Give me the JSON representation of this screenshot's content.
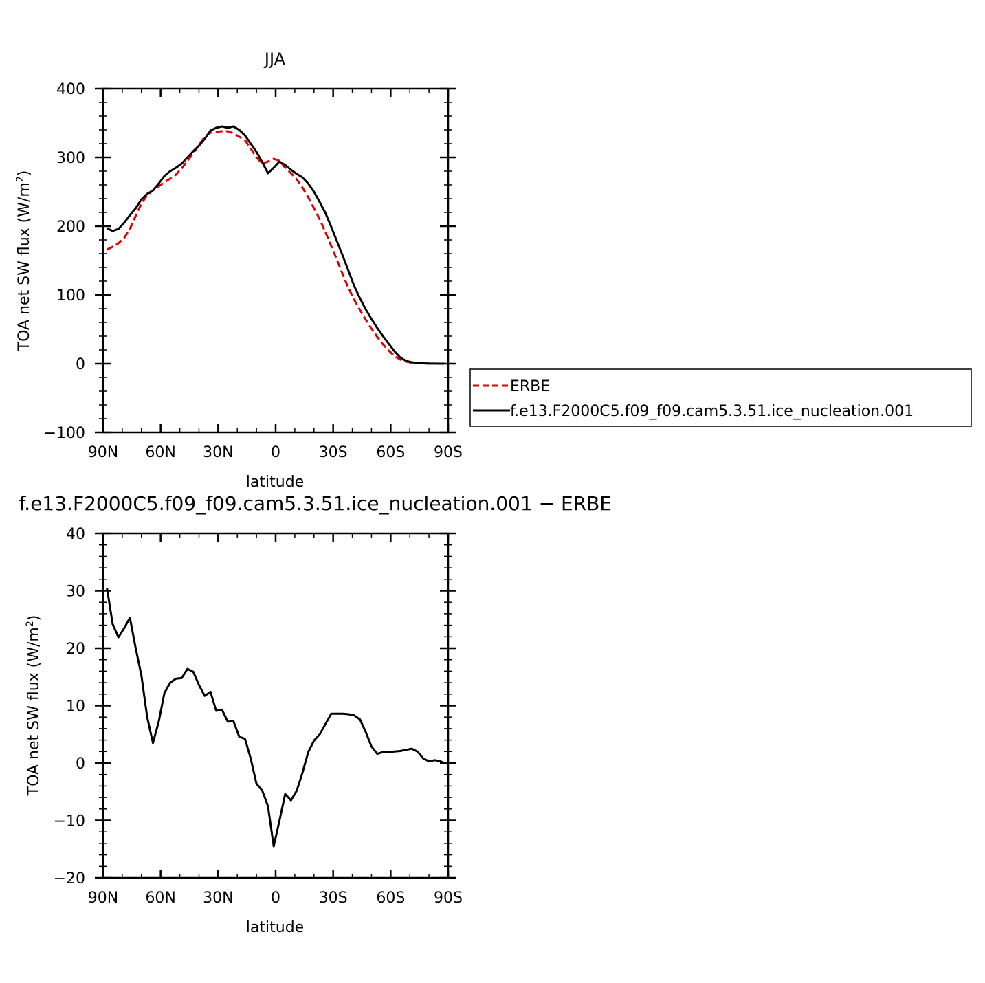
{
  "chart_data": [
    {
      "type": "line",
      "title": "JJA",
      "xlabel": "latitude",
      "ylabel": "TOA net SW flux (W/m²)",
      "ylabel_main": "TOA net SW flux (W/m",
      "ylabel_sup": "2",
      "ylabel_end": ")",
      "xlim": [
        90,
        -90
      ],
      "ylim": [
        -100,
        400
      ],
      "xticks": [
        90,
        60,
        30,
        0,
        -30,
        -60,
        -90
      ],
      "xtick_labels": [
        "90N",
        "60N",
        "30N",
        "0",
        "30S",
        "60S",
        "90S"
      ],
      "yticks": [
        -100,
        0,
        100,
        200,
        300,
        400
      ],
      "ytick_labels": [
        "−100",
        "0",
        "100",
        "200",
        "300",
        "400"
      ],
      "legend_position": "right",
      "series": [
        {
          "name": "ERBE",
          "color": "#e00000",
          "style": "dashed",
          "x": [
            88,
            85,
            82,
            79,
            76,
            73,
            70,
            67,
            64,
            61,
            58,
            55,
            52,
            49,
            46,
            43,
            40,
            37,
            34,
            31,
            28,
            25,
            22,
            19,
            16,
            13,
            10,
            7,
            4,
            1,
            -2,
            -5,
            -8,
            -11,
            -14,
            -17,
            -20,
            -23,
            -26,
            -29,
            -32,
            -35,
            -38,
            -41,
            -44,
            -47,
            -50,
            -53,
            -56,
            -59,
            -62,
            -65,
            -68,
            -71,
            -74,
            -77,
            -80,
            -83,
            -86,
            -88
          ],
          "y": [
            166,
            170,
            175,
            183,
            196,
            215,
            233,
            245,
            252,
            258,
            264,
            269,
            275,
            284,
            295,
            306,
            318,
            330,
            336,
            337,
            338,
            338,
            335,
            330,
            325,
            313,
            300,
            291,
            294,
            298,
            295,
            285,
            277,
            268,
            256,
            242,
            226,
            210,
            191,
            171,
            151,
            130,
            110,
            93,
            78,
            64,
            51,
            39,
            28,
            19,
            11,
            6,
            3,
            1.5,
            0.8,
            0.3,
            0.1,
            0,
            0,
            0
          ]
        },
        {
          "name": "f.e13.F2000C5.f09_f09.cam5.3.51.ice_nucleation.001",
          "color": "#000000",
          "style": "solid",
          "x": [
            88,
            85,
            82,
            79,
            76,
            73,
            70,
            67,
            64,
            61,
            58,
            55,
            52,
            49,
            46,
            43,
            40,
            37,
            34,
            31,
            28,
            25,
            22,
            19,
            16,
            13,
            10,
            7,
            4,
            1,
            -2,
            -5,
            -8,
            -11,
            -14,
            -17,
            -20,
            -23,
            -26,
            -29,
            -32,
            -35,
            -38,
            -41,
            -44,
            -47,
            -50,
            -53,
            -56,
            -59,
            -62,
            -65,
            -68,
            -71,
            -74,
            -77,
            -80,
            -83,
            -86,
            -88
          ],
          "y": [
            197,
            193,
            196,
            205,
            216,
            226,
            239,
            247,
            252,
            262,
            273,
            280,
            285,
            291,
            300,
            309,
            317,
            327,
            339,
            343,
            345,
            343,
            345,
            340,
            332,
            320,
            308,
            293,
            277,
            285,
            294,
            289,
            282,
            276,
            271,
            262,
            250,
            235,
            219,
            199,
            178,
            157,
            135,
            113,
            95,
            79,
            65,
            52,
            40,
            29,
            18,
            9,
            4,
            2,
            1,
            0.5,
            0.2,
            0.1,
            0,
            0
          ]
        }
      ]
    },
    {
      "type": "line",
      "title": "f.e13.F2000C5.f09_f09.cam5.3.51.ice_nucleation.001 − ERBE",
      "xlabel": "latitude",
      "ylabel": "TOA net SW flux (W/m²)",
      "ylabel_main": "TOA net SW flux (W/m",
      "ylabel_sup": "2",
      "ylabel_end": ")",
      "xlim": [
        90,
        -90
      ],
      "ylim": [
        -20,
        40
      ],
      "xticks": [
        90,
        60,
        30,
        0,
        -30,
        -60,
        -90
      ],
      "xtick_labels": [
        "90N",
        "60N",
        "30N",
        "0",
        "30S",
        "60S",
        "90S"
      ],
      "yticks": [
        -20,
        -10,
        0,
        10,
        20,
        30,
        40
      ],
      "ytick_labels": [
        "−20",
        "−10",
        "0",
        "10",
        "20",
        "30",
        "40"
      ],
      "series": [
        {
          "name": "",
          "color": "#000000",
          "style": "solid",
          "x": [
            88,
            85,
            82,
            79,
            76,
            73,
            70,
            67,
            64,
            61,
            58,
            55,
            52,
            49,
            46,
            43,
            40,
            37,
            34,
            31,
            28,
            25,
            22,
            19,
            16,
            13,
            10,
            7,
            4,
            1,
            -2,
            -5,
            -8,
            -11,
            -14,
            -17,
            -20,
            -23,
            -26,
            -29,
            -32,
            -35,
            -38,
            -41,
            -44,
            -47,
            -50,
            -53,
            -56,
            -59,
            -62,
            -65,
            -68,
            -71,
            -74,
            -77,
            -80,
            -83,
            -86,
            -88
          ],
          "y": [
            30.5,
            24.2,
            21.9,
            23.5,
            25.3,
            20.0,
            15.2,
            8.0,
            3.5,
            7.2,
            12.2,
            14.0,
            14.7,
            14.8,
            16.4,
            15.9,
            13.6,
            11.7,
            12.4,
            9.1,
            9.3,
            7.2,
            7.3,
            4.6,
            4.2,
            0.8,
            -3.6,
            -4.8,
            -7.5,
            -14.5,
            -10.0,
            -5.4,
            -6.5,
            -4.8,
            -1.7,
            1.9,
            3.9,
            5.0,
            6.8,
            8.6,
            8.6,
            8.6,
            8.5,
            8.3,
            7.6,
            5.4,
            2.9,
            1.6,
            1.9,
            1.9,
            2.0,
            2.1,
            2.3,
            2.5,
            2.0,
            0.8,
            0.3,
            0.5,
            0.3,
            0.0
          ]
        }
      ]
    }
  ]
}
